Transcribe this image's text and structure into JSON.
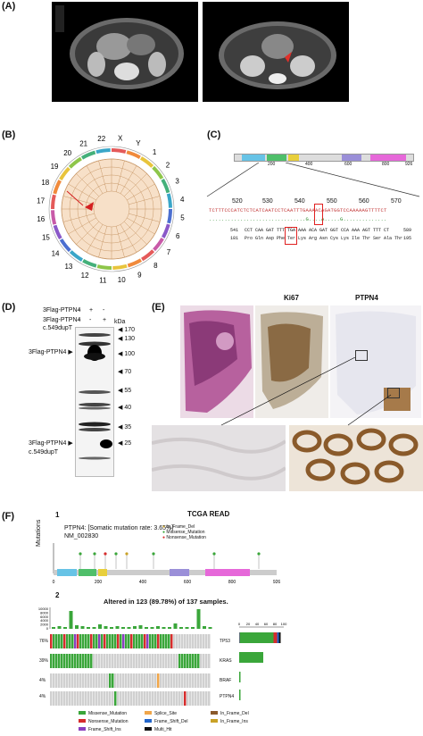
{
  "panels": {
    "a": {
      "label": "(A)"
    },
    "b": {
      "label": "(B)",
      "chromosomes": [
        "X",
        "Y",
        "1",
        "2",
        "3",
        "4",
        "5",
        "6",
        "7",
        "8",
        "9",
        "10",
        "11",
        "12",
        "13",
        "14",
        "15",
        "16",
        "17",
        "18",
        "19",
        "20",
        "21",
        "22"
      ]
    },
    "c": {
      "label": "(C)",
      "axis_ticks": [
        "200",
        "400",
        "600",
        "800",
        "926"
      ],
      "seq_ticks": [
        "520",
        "530",
        "540",
        "550",
        "560",
        "570"
      ],
      "seq_top": "TCTTTCCCATCTCTCATCAATCCTCAATTTGAAAACAGATGGTCCAAAAAGTTTTCT",
      "seq_mid": "...............................G....A.....G..............",
      "row1_num": "541",
      "row1_dna": "CCT CAA GAT TTT TGA AAA ACA GAT GGT CCA AAA AGT TTT CT",
      "row1_end": "589",
      "row2_num": "181",
      "row2_aa": "Pro Gln Asp Phe Ter Lys Arg Asn Cys Lys Ile Thr Ser Ala Thr",
      "row2_end": "195"
    },
    "d": {
      "label": "(D)",
      "row1_label": "3Flag-PTPN4",
      "row2_label": "3Flag-PTPN4",
      "row2_sub": "c.549dupT",
      "lane_signs_row1": [
        "-",
        "+",
        "-"
      ],
      "lane_signs_row2": [
        "-",
        "-",
        "+"
      ],
      "kda": "kDa",
      "markers": [
        "170",
        "130",
        "100",
        "70",
        "55",
        "40",
        "35",
        "25"
      ],
      "arrow1": "3Flag-PTPN4",
      "arrow2a": "3Flag-PTPN4",
      "arrow2b": "c.549dupT"
    },
    "e": {
      "label": "(E)",
      "col_ki67": "Ki67",
      "col_ptpn4": "PTPN4"
    },
    "f": {
      "label": "(F)",
      "sub1": "1",
      "title": "TCGA READ",
      "gene_line": "PTPN4: [Somatic mutation rate: 3.65%]",
      "accession": "NM_002830",
      "ylabel": "Mutations",
      "legend_top": [
        "In_Frame_Del",
        "Missense_Mutation",
        "Nonsense_Mutation"
      ],
      "lollipop_ticks": [
        "0",
        "200",
        "400",
        "600",
        "800",
        "926"
      ],
      "sub2": "2",
      "altered": "Altered in 123 (89.78%) of 137 samples.",
      "yticks": [
        "10000",
        "8000",
        "6000",
        "4000",
        "2000",
        "0"
      ],
      "bar_ticks": [
        "0",
        "20",
        "40",
        "60",
        "80",
        "100"
      ],
      "genes": [
        {
          "pct": "76%",
          "name": "TP53"
        },
        {
          "pct": "39%",
          "name": "KRAS"
        },
        {
          "pct": "4%",
          "name": "BRAF"
        },
        {
          "pct": "4%",
          "name": "PTPN4"
        }
      ],
      "legend": [
        {
          "name": "Missense_Mutation",
          "color": "#3aa63a"
        },
        {
          "name": "Splice_Site",
          "color": "#f0a64a"
        },
        {
          "name": "In_Frame_Del",
          "color": "#8b5a2b"
        },
        {
          "name": "Nonsense_Mutation",
          "color": "#d62c2c"
        },
        {
          "name": "Frame_Shift_Del",
          "color": "#2266cc"
        },
        {
          "name": "In_Frame_Ins",
          "color": "#c9a227"
        },
        {
          "name": "Frame_Shift_Ins",
          "color": "#8a3fbf"
        },
        {
          "name": "Multi_Hit",
          "color": "#111111"
        }
      ]
    }
  }
}
